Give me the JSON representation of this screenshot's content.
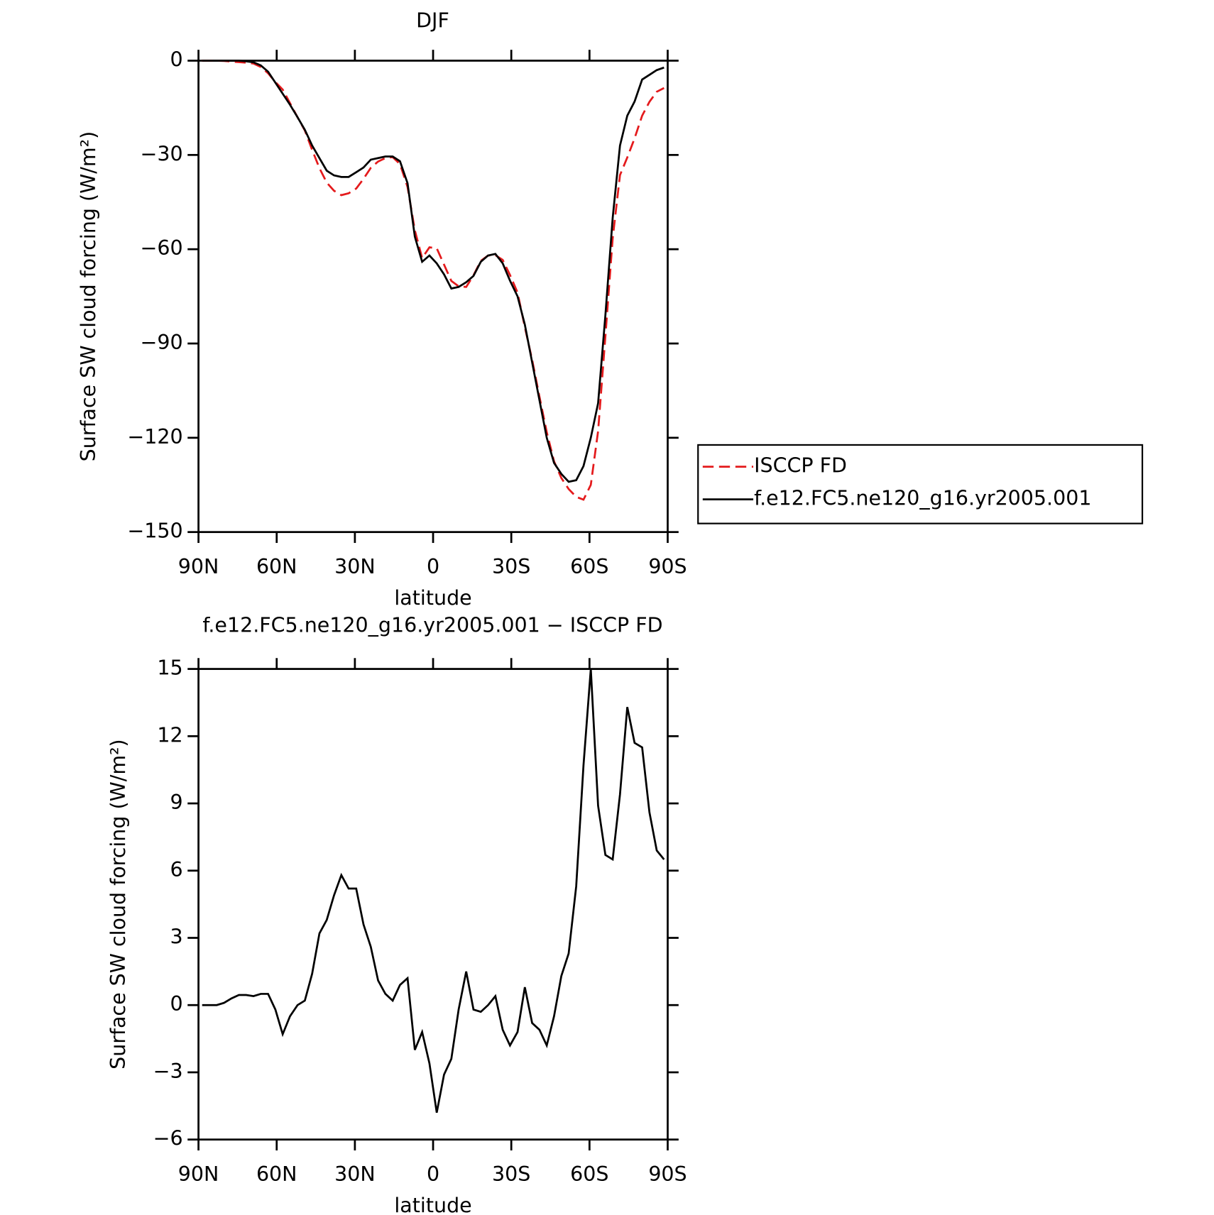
{
  "chart_data": [
    {
      "type": "line",
      "title": "DJF",
      "xlabel": "latitude",
      "ylabel": "Surface SW cloud forcing (W/m²)",
      "xlim": [
        90,
        -90
      ],
      "xticks": [
        {
          "value": 90,
          "label": "90N"
        },
        {
          "value": 60,
          "label": "60N"
        },
        {
          "value": 30,
          "label": "30N"
        },
        0,
        {
          "value": -30,
          "label": "30S"
        },
        {
          "value": -60,
          "label": "60S"
        },
        {
          "value": -90,
          "label": "90S"
        }
      ],
      "ylim": [
        -150,
        0
      ],
      "yticks": [
        {
          "value": -150,
          "label": "−150"
        },
        {
          "value": -120,
          "label": "−120"
        },
        {
          "value": -90,
          "label": "−90"
        },
        {
          "value": -60,
          "label": "−60"
        },
        {
          "value": -30,
          "label": "−30"
        },
        0
      ],
      "x": [
        88.6,
        85.8,
        83.0,
        80.2,
        77.3,
        74.5,
        71.7,
        68.9,
        66.1,
        63.3,
        60.5,
        57.7,
        54.9,
        52.0,
        49.2,
        46.4,
        43.6,
        40.8,
        38.0,
        35.2,
        32.4,
        29.5,
        26.7,
        23.9,
        21.1,
        18.3,
        15.5,
        12.7,
        9.8,
        7.0,
        4.2,
        1.4,
        -1.4,
        -4.2,
        -7.0,
        -9.8,
        -12.7,
        -15.5,
        -18.3,
        -21.1,
        -23.9,
        -26.7,
        -29.5,
        -32.4,
        -35.2,
        -38.0,
        -40.8,
        -43.6,
        -46.4,
        -49.2,
        -52.0,
        -54.9,
        -57.7,
        -60.5,
        -63.3,
        -66.1,
        -68.9,
        -71.7,
        -74.5,
        -77.3,
        -80.2,
        -83.0,
        -85.8,
        -88.6
      ],
      "legend": "right",
      "series": [
        {
          "name": "ISCCP FD",
          "color": "#e41a1c",
          "line_style": "dashed",
          "values": [
            0,
            0,
            0,
            -0.1,
            -0.3,
            -0.45,
            -0.65,
            -0.9,
            -2.0,
            -4.0,
            -6.8,
            -9.2,
            -13.5,
            -18,
            -22.2,
            -28.4,
            -34.2,
            -38.8,
            -41.4,
            -42.8,
            -42.2,
            -40.7,
            -37.6,
            -34.1,
            -32.1,
            -31,
            -30.7,
            -32.9,
            -40.2,
            -54,
            -62.8,
            -59.4,
            -59.7,
            -64.9,
            -70.1,
            -71.8,
            -72,
            -68.3,
            -63.7,
            -62,
            -61.9,
            -63.4,
            -68.2,
            -73.8,
            -84.8,
            -95.2,
            -106.9,
            -118.2,
            -127.5,
            -132.8,
            -136.3,
            -138.8,
            -139.7,
            -135,
            -117.9,
            -87.7,
            -56.5,
            -36.4,
            -30.8,
            -24.7,
            -17.5,
            -13.1,
            -9.9,
            -8.7
          ]
        },
        {
          "name": "f.e12.FC5.ne120_g16.yr2005.001",
          "color": "#000000",
          "line_style": "solid",
          "values": [
            0,
            0,
            0,
            0,
            0,
            0,
            -0.2,
            -0.5,
            -1.5,
            -3.5,
            -7,
            -10.5,
            -14,
            -18,
            -22,
            -27,
            -31,
            -35,
            -36.5,
            -37,
            -37,
            -35.5,
            -34,
            -31.5,
            -31,
            -30.5,
            -30.5,
            -32,
            -39,
            -56,
            -64,
            -62,
            -64.5,
            -68,
            -72.5,
            -72,
            -70.5,
            -68.5,
            -64,
            -62,
            -61.5,
            -64.5,
            -70,
            -75,
            -84,
            -96,
            -108,
            -120,
            -128,
            -131.5,
            -134,
            -133.5,
            -129,
            -120,
            -109,
            -81,
            -50,
            -27,
            -17.5,
            -13,
            -6,
            -4.5,
            -3,
            -2.2
          ]
        }
      ]
    },
    {
      "type": "line",
      "title": "f.e12.FC5.ne120_g16.yr2005.001 − ISCCP FD",
      "xlabel": "latitude",
      "ylabel": "Surface SW cloud forcing (W/m²)",
      "xlim": [
        90,
        -90
      ],
      "xticks": [
        {
          "value": 90,
          "label": "90N"
        },
        {
          "value": 60,
          "label": "60N"
        },
        {
          "value": 30,
          "label": "30N"
        },
        0,
        {
          "value": -30,
          "label": "30S"
        },
        {
          "value": -60,
          "label": "60S"
        },
        {
          "value": -90,
          "label": "90S"
        }
      ],
      "ylim": [
        -6,
        15
      ],
      "yticks": [
        {
          "value": -6,
          "label": "−6"
        },
        {
          "value": -3,
          "label": "−3"
        },
        0,
        3,
        6,
        9,
        12,
        15
      ],
      "x": [
        88.6,
        85.8,
        83.0,
        80.2,
        77.3,
        74.5,
        71.7,
        68.9,
        66.1,
        63.3,
        60.5,
        57.7,
        54.9,
        52.0,
        49.2,
        46.4,
        43.6,
        40.8,
        38.0,
        35.2,
        32.4,
        29.5,
        26.7,
        23.9,
        21.1,
        18.3,
        15.5,
        12.7,
        9.8,
        7.0,
        4.2,
        1.4,
        -1.4,
        -4.2,
        -7.0,
        -9.8,
        -12.7,
        -15.5,
        -18.3,
        -21.1,
        -23.9,
        -26.7,
        -29.5,
        -32.4,
        -35.2,
        -38.0,
        -40.8,
        -43.6,
        -46.4,
        -49.2,
        -52.0,
        -54.9,
        -57.7,
        -60.5,
        -63.3,
        -66.1,
        -68.9,
        -71.7,
        -74.5,
        -77.3,
        -80.2,
        -83.0,
        -85.8,
        -88.6
      ],
      "color": "#000000",
      "values": [
        0,
        0,
        0,
        0.1,
        0.3,
        0.45,
        0.45,
        0.4,
        0.5,
        0.5,
        -0.2,
        -1.3,
        -0.5,
        0,
        0.2,
        1.4,
        3.2,
        3.8,
        4.9,
        5.8,
        5.2,
        5.2,
        3.6,
        2.6,
        1.1,
        0.5,
        0.2,
        0.9,
        1.2,
        -2.0,
        -1.2,
        -2.6,
        -4.8,
        -3.1,
        -2.4,
        -0.2,
        1.5,
        -0.2,
        -0.3,
        0,
        0.4,
        -1.1,
        -1.8,
        -1.2,
        0.8,
        -0.8,
        -1.1,
        -1.8,
        -0.5,
        1.3,
        2.3,
        5.3,
        10.7,
        15,
        8.9,
        6.7,
        6.5,
        9.4,
        13.3,
        11.7,
        11.5,
        8.6,
        6.9,
        6.5
      ]
    }
  ]
}
